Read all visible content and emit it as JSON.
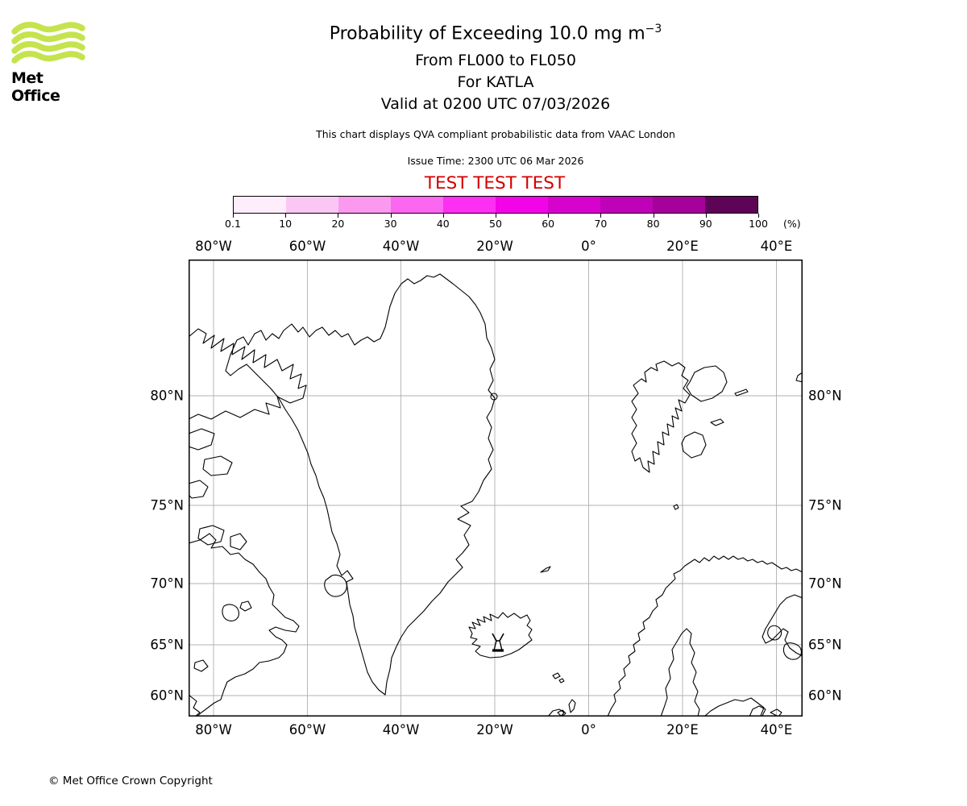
{
  "branding": {
    "logo_text": "Met Office",
    "logo_color": "#c5e34d",
    "copyright": "© Met Office Crown Copyright"
  },
  "header": {
    "title_main": "Probability of Exceeding 10.0 mg m",
    "title_sup": "−3",
    "subtitle_lines": [
      "From FL000 to FL050",
      "For KATLA",
      "Valid at 0200 UTC 07/03/2026"
    ],
    "info_line": "This chart displays QVA compliant probabilistic data from VAAC London",
    "issue_line": "Issue Time: 2300 UTC 06 Mar 2026",
    "test_banner": "TEST TEST TEST",
    "test_color": "#d40000"
  },
  "chart_data": {
    "type": "map",
    "title": "Probability of Exceeding 10.0 mg m−3",
    "volcano": "KATLA",
    "flight_levels": "FL000 to FL050",
    "valid_time": "0200 UTC 07/03/2026",
    "issue_time": "2300 UTC 06 Mar 2026",
    "source": "VAAC London",
    "probability_shading_present": false,
    "colorbar": {
      "unit": "(%)",
      "tick_labels": [
        "0.1",
        "10",
        "20",
        "30",
        "40",
        "50",
        "60",
        "70",
        "80",
        "90",
        "100"
      ],
      "segment_colors": [
        "#feeefb",
        "#fcc6f4",
        "#fb99ee",
        "#fb67f0",
        "#fc2ff3",
        "#f304e8",
        "#d802cf",
        "#bf01b7",
        "#a6019b",
        "#5e0457"
      ]
    },
    "map": {
      "lon_tick_labels": [
        "80°W",
        "60°W",
        "40°W",
        "20°W",
        "0°",
        "20°E",
        "40°E"
      ],
      "lat_tick_labels": [
        "80°N",
        "75°N",
        "70°N",
        "65°N",
        "60°N"
      ],
      "grid": true,
      "coastline_regions": [
        "Greenland",
        "Canadian Arctic",
        "Iceland",
        "Svalbard",
        "Scandinavia"
      ],
      "volcano_marker": "volcano-icon at KATLA, Iceland"
    }
  }
}
